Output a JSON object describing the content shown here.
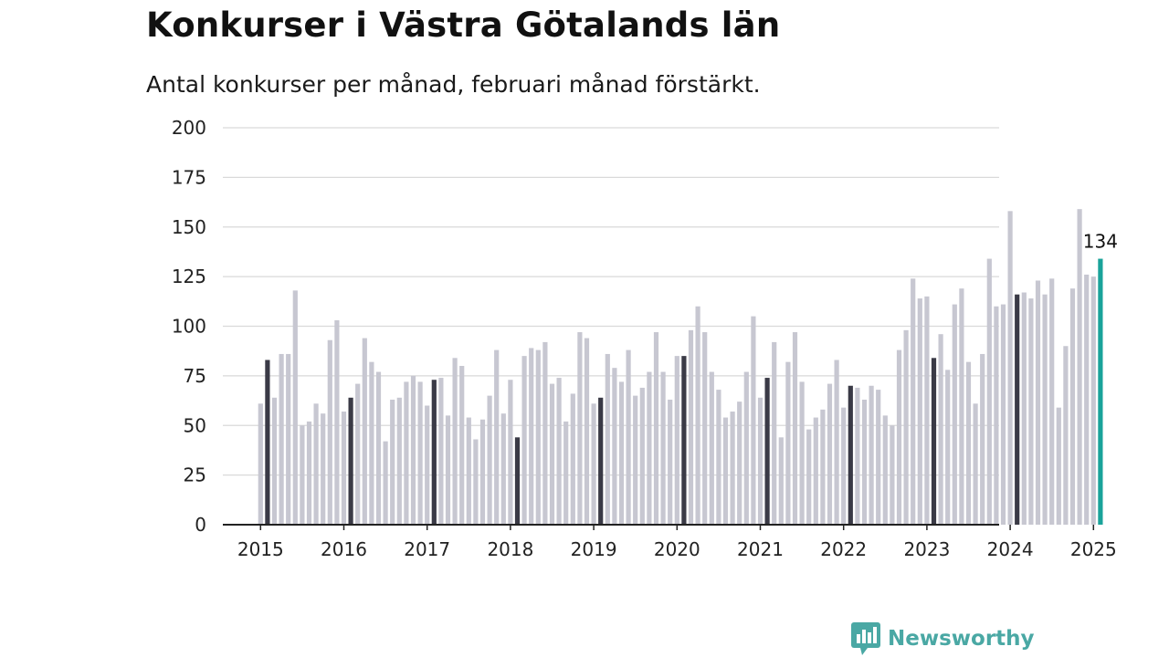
{
  "title": "Konkurser i Västra Götalands län",
  "subtitle": "Antal konkurser per månad, februari månad förstärkt.",
  "brand": "Newsworthy",
  "colors": {
    "bar": "#c7c7d1",
    "highlight": "#3a3a46",
    "latest": "#1aa39a",
    "grid": "#d9d9d9",
    "axis": "#222222",
    "brand": "#4aa8a4"
  },
  "chart_data": {
    "type": "bar",
    "ylim": [
      0,
      200
    ],
    "yticks": [
      0,
      25,
      50,
      75,
      100,
      125,
      150,
      175,
      200
    ],
    "xticks": [
      "2015",
      "2016",
      "2017",
      "2018",
      "2019",
      "2020",
      "2021",
      "2022",
      "2023",
      "2024",
      "2025"
    ],
    "grid": true,
    "start": "2015-01",
    "highlight_month": "februari",
    "last_value_label": "134",
    "values": [
      61,
      83,
      64,
      86,
      86,
      118,
      50,
      52,
      61,
      56,
      93,
      103,
      57,
      64,
      71,
      94,
      82,
      77,
      42,
      63,
      64,
      72,
      75,
      72,
      60,
      73,
      74,
      55,
      84,
      80,
      54,
      43,
      53,
      65,
      88,
      56,
      73,
      44,
      85,
      89,
      88,
      92,
      71,
      74,
      52,
      66,
      97,
      94,
      61,
      64,
      86,
      79,
      72,
      88,
      65,
      69,
      77,
      97,
      77,
      63,
      85,
      85,
      98,
      110,
      97,
      77,
      68,
      54,
      57,
      62,
      77,
      105,
      64,
      74,
      92,
      44,
      82,
      97,
      72,
      48,
      54,
      58,
      71,
      83,
      59,
      70,
      69,
      63,
      70,
      68,
      55,
      50,
      88,
      98,
      124,
      114,
      115,
      84,
      96,
      78,
      111,
      119,
      82,
      61,
      86,
      134,
      110,
      111,
      158,
      116,
      117,
      114,
      123,
      116,
      124,
      59,
      90,
      119,
      159,
      126,
      125,
      134
    ]
  }
}
